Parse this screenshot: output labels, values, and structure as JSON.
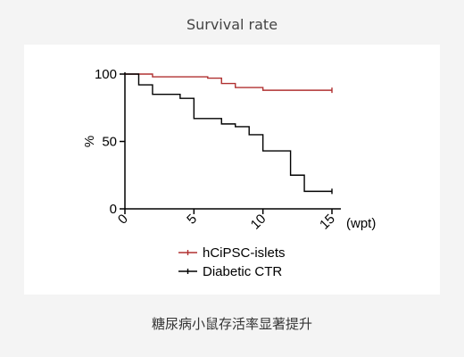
{
  "header": {
    "title": "Survival rate"
  },
  "caption": "糖尿病小鼠存活率显著提升",
  "chart_data": {
    "type": "line",
    "step": true,
    "xlabel": "(wpt)",
    "ylabel": "%",
    "xlim": [
      0,
      15
    ],
    "ylim": [
      0,
      100
    ],
    "xticks": [
      "0",
      "5",
      "10",
      "15"
    ],
    "yticks": [
      "0",
      "50",
      "100"
    ],
    "grid": false,
    "legend_placement": "bottom",
    "series": [
      {
        "name": "hCiPSC-islets",
        "color": "#b03030",
        "x": [
          0,
          2,
          6,
          7,
          8,
          10,
          15
        ],
        "y": [
          100,
          98,
          97,
          93,
          90,
          88,
          88
        ]
      },
      {
        "name": "Diabetic CTR",
        "color": "#000000",
        "x": [
          0,
          1,
          2,
          4,
          5,
          7,
          8,
          9,
          10,
          12,
          13,
          15
        ],
        "y": [
          100,
          92,
          85,
          82,
          67,
          63,
          61,
          55,
          43,
          25,
          13,
          13
        ]
      }
    ]
  }
}
